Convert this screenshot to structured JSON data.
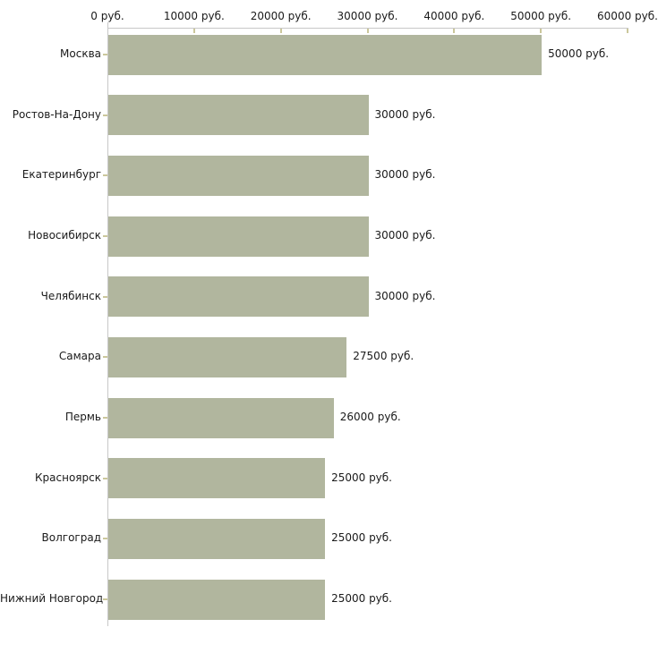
{
  "chart_data": {
    "type": "bar",
    "orientation": "horizontal",
    "title": "",
    "xlabel": "",
    "ylabel": "",
    "categories": [
      "Москва",
      "Ростов-На-Дону",
      "Екатеринбург",
      "Новосибирск",
      "Челябинск",
      "Самара",
      "Пермь",
      "Красноярск",
      "Волгоград",
      "Нижний Новгород"
    ],
    "values": [
      50000,
      30000,
      30000,
      30000,
      30000,
      27500,
      26000,
      25000,
      25000,
      25000
    ],
    "value_labels": [
      "50000 руб.",
      "30000 руб.",
      "30000 руб.",
      "30000 руб.",
      "30000 руб.",
      "27500 руб.",
      "26000 руб.",
      "25000 руб.",
      "25000 руб.",
      "25000 руб."
    ],
    "x_ticks": [
      0,
      10000,
      20000,
      30000,
      40000,
      50000,
      60000
    ],
    "x_tick_labels": [
      "0 руб.",
      "10000 руб.",
      "20000 руб.",
      "30000 руб.",
      "40000 руб.",
      "50000 руб.",
      "60000 руб."
    ],
    "xlim": [
      0,
      60000
    ],
    "grid": false,
    "legend": false,
    "colors": {
      "bar": "#b1b69e",
      "tick": "#cbc79b",
      "axis": "#c8c8c8",
      "text": "#1a1a1a",
      "background": "#ffffff"
    }
  }
}
